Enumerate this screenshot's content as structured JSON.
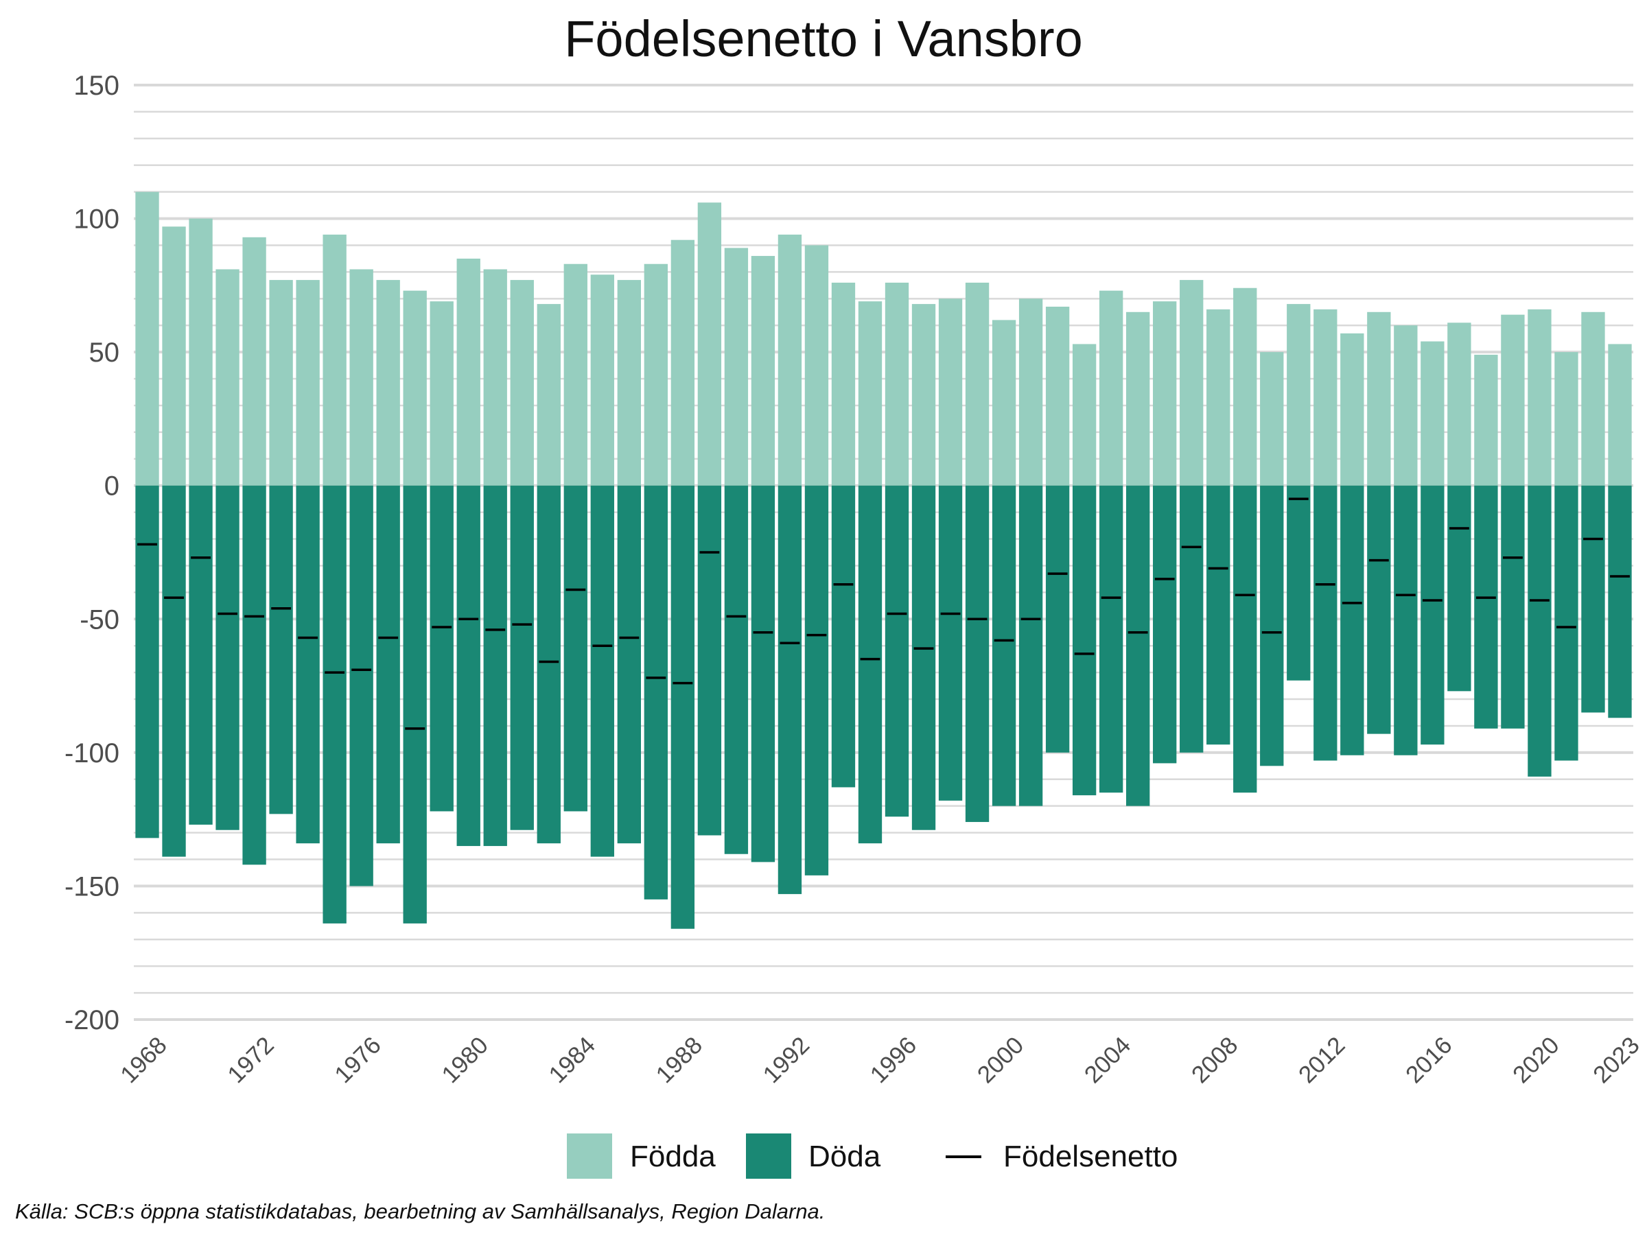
{
  "chart_data": {
    "type": "bar",
    "title": "Födelsenetto i Vansbro",
    "xlabel": "",
    "ylabel": "",
    "ylim": [
      -200,
      150
    ],
    "y_ticks": [
      "150",
      "100",
      "50",
      "0",
      "-50",
      "-100",
      "-150",
      "-200"
    ],
    "x_tick_labels": [
      "1968",
      "1972",
      "1976",
      "1980",
      "1984",
      "1988",
      "1992",
      "1996",
      "2000",
      "2004",
      "2008",
      "2012",
      "2016",
      "2020",
      "2023"
    ],
    "categories": [
      1968,
      1969,
      1970,
      1971,
      1972,
      1973,
      1974,
      1975,
      1976,
      1977,
      1978,
      1979,
      1980,
      1981,
      1982,
      1983,
      1984,
      1985,
      1986,
      1987,
      1988,
      1989,
      1990,
      1991,
      1992,
      1993,
      1994,
      1995,
      1996,
      1997,
      1998,
      1999,
      2000,
      2001,
      2002,
      2003,
      2004,
      2005,
      2006,
      2007,
      2008,
      2009,
      2010,
      2011,
      2012,
      2013,
      2014,
      2015,
      2016,
      2017,
      2018,
      2019,
      2020,
      2021,
      2022,
      2023
    ],
    "series": [
      {
        "name": "Födda",
        "kind": "bar",
        "color": "#96CEBF",
        "values": [
          110,
          97,
          100,
          81,
          93,
          77,
          77,
          94,
          81,
          77,
          73,
          69,
          85,
          81,
          77,
          68,
          83,
          79,
          77,
          83,
          92,
          106,
          89,
          86,
          94,
          90,
          76,
          69,
          76,
          68,
          70,
          76,
          62,
          70,
          67,
          53,
          73,
          65,
          69,
          77,
          66,
          74,
          50,
          68,
          66,
          57,
          65,
          60,
          54,
          61,
          49,
          64,
          66,
          50,
          65,
          53
        ]
      },
      {
        "name": "Döda",
        "kind": "bar",
        "color": "#1A8874",
        "values": [
          -132,
          -139,
          -127,
          -129,
          -142,
          -123,
          -134,
          -164,
          -150,
          -134,
          -164,
          -122,
          -135,
          -135,
          -129,
          -134,
          -122,
          -139,
          -134,
          -155,
          -166,
          -131,
          -138,
          -141,
          -153,
          -146,
          -113,
          -134,
          -124,
          -129,
          -118,
          -126,
          -120,
          -120,
          -100,
          -116,
          -115,
          -120,
          -104,
          -100,
          -97,
          -115,
          -105,
          -73,
          -103,
          -101,
          -93,
          -101,
          -97,
          -77,
          -91,
          -91,
          -109,
          -103,
          -85,
          -87
        ]
      },
      {
        "name": "Födelsenetto",
        "kind": "line-marker",
        "color": "#000000",
        "values": [
          -22,
          -42,
          -27,
          -48,
          -49,
          -46,
          -57,
          -70,
          -69,
          -57,
          -91,
          -53,
          -50,
          -54,
          -52,
          -66,
          -39,
          -60,
          -57,
          -72,
          -74,
          -25,
          -49,
          -55,
          -59,
          -56,
          -37,
          -65,
          -48,
          -61,
          -48,
          -50,
          -58,
          -50,
          -33,
          -63,
          -42,
          -55,
          -35,
          -23,
          -31,
          -41,
          -55,
          -5,
          -37,
          -44,
          -28,
          -41,
          -43,
          -16,
          -42,
          -27,
          -43,
          -53,
          -20,
          -34
        ]
      }
    ],
    "grid": true,
    "legend_position": "bottom",
    "source": "Källa: SCB:s öppna statistikdatabas, bearbetning av Samhällsanalys, Region Dalarna."
  }
}
